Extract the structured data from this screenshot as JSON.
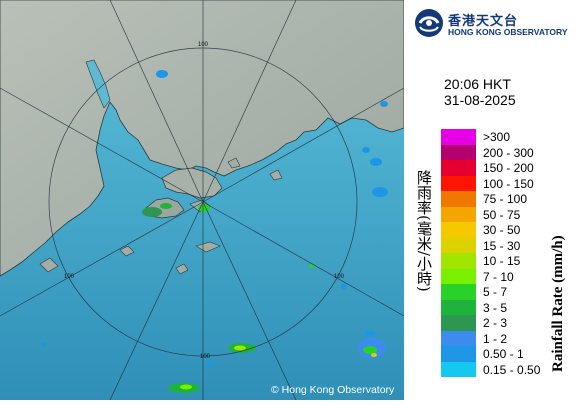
{
  "header": {
    "logo_icon": "hko-logo-icon",
    "org_name_cn": "香港天文台",
    "org_name_en": "HONG KONG OBSERVATORY"
  },
  "timestamp": {
    "time": "20:06 HKT",
    "date": "31-08-2025"
  },
  "legend": {
    "title_cn": "降雨率(毫米/小時)",
    "title_en": "Rainfall Rate (mm/h)",
    "items": [
      {
        "label": ">300",
        "color": "#e600e6"
      },
      {
        "label": "200 - 300",
        "color": "#b4006e"
      },
      {
        "label": "150 - 200",
        "color": "#e60032"
      },
      {
        "label": "100 - 150",
        "color": "#ff1400"
      },
      {
        "label": "75 - 100",
        "color": "#f07800"
      },
      {
        "label": "50 - 75",
        "color": "#f5a500"
      },
      {
        "label": "30 - 50",
        "color": "#f5c800"
      },
      {
        "label": "15 - 30",
        "color": "#dcd200"
      },
      {
        "label": "10 - 15",
        "color": "#a0e600"
      },
      {
        "label": "7 - 10",
        "color": "#78f000"
      },
      {
        "label": "5 - 7",
        "color": "#28d228"
      },
      {
        "label": "3 - 5",
        "color": "#1eb43c"
      },
      {
        "label": "2 - 3",
        "color": "#2d9650"
      },
      {
        "label": "1 - 2",
        "color": "#3c8cf0"
      },
      {
        "label": "0.50 - 1",
        "color": "#1e96e6"
      },
      {
        "label": "0.15 - 0.50",
        "color": "#14c8f0"
      }
    ]
  },
  "map": {
    "range_ring_labels": [
      "100",
      "100",
      "100",
      "100"
    ],
    "copyright": "© Hong Kong Observatory",
    "sea_color": "#3aa7c8",
    "land_color": "#a8b2aa"
  }
}
